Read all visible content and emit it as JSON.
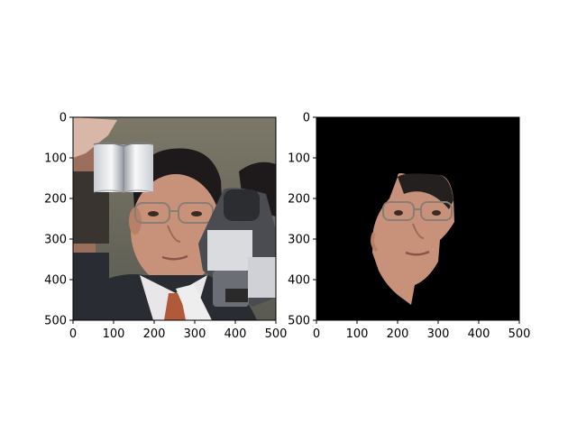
{
  "figure": {
    "panels": [
      {
        "name": "left",
        "content": "photo-with-overlay",
        "x_ticks": [
          "0",
          "100",
          "200",
          "300",
          "400",
          "500"
        ],
        "y_ticks": [
          "0",
          "100",
          "200",
          "300",
          "400",
          "500"
        ]
      },
      {
        "name": "right",
        "content": "face-segment-on-black",
        "x_ticks": [
          "0",
          "100",
          "200",
          "300",
          "400",
          "500"
        ],
        "y_ticks": [
          "0",
          "100",
          "200",
          "300",
          "400",
          "500"
        ]
      }
    ],
    "axis_range": [
      0,
      500
    ],
    "colors": {
      "background": "#ffffff",
      "mask_background": "#000000",
      "skin": "#c8927a",
      "hair": "#1e1a1c",
      "suit": "#2a2c34",
      "shirt": "#e9e6ea",
      "tie": "#b05a3a",
      "wall": "#75705f",
      "camera": "#4a4c52"
    }
  }
}
